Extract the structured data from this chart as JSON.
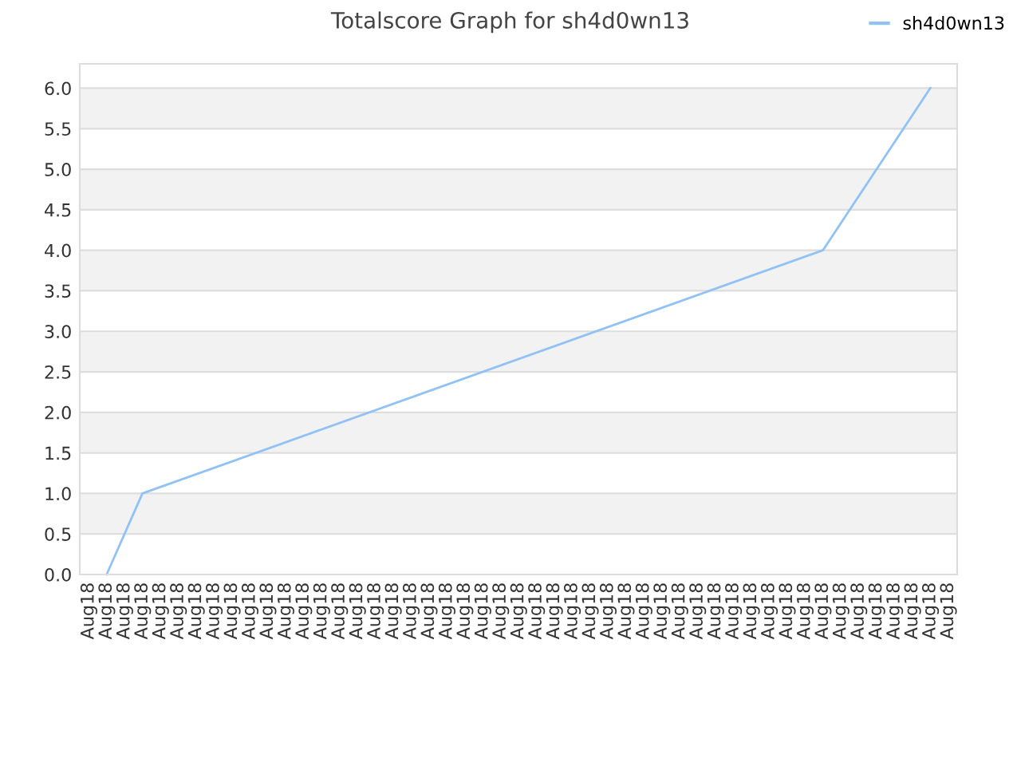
{
  "chart_data": {
    "type": "line",
    "title": "Totalscore Graph for sh4d0wn13",
    "categories": [
      "Aug18",
      "Aug18",
      "Aug18",
      "Aug18",
      "Aug18",
      "Aug18",
      "Aug18",
      "Aug18",
      "Aug18",
      "Aug18",
      "Aug18",
      "Aug18",
      "Aug18",
      "Aug18",
      "Aug18",
      "Aug18",
      "Aug18",
      "Aug18",
      "Aug18",
      "Aug18",
      "Aug18",
      "Aug18",
      "Aug18",
      "Aug18",
      "Aug18",
      "Aug18",
      "Aug18",
      "Aug18",
      "Aug18",
      "Aug18",
      "Aug18",
      "Aug18",
      "Aug18",
      "Aug18",
      "Aug18",
      "Aug18",
      "Aug18",
      "Aug18",
      "Aug18",
      "Aug18",
      "Aug18",
      "Aug18",
      "Aug18",
      "Aug18",
      "Aug18",
      "Aug18",
      "Aug18",
      "Aug18",
      "Aug18"
    ],
    "series": [
      {
        "name": "sh4d0wn13",
        "color": "#90c2f5",
        "values": [
          null,
          0,
          null,
          1.0,
          null,
          null,
          null,
          null,
          null,
          null,
          null,
          null,
          null,
          null,
          null,
          null,
          null,
          null,
          null,
          null,
          null,
          null,
          null,
          null,
          null,
          null,
          null,
          null,
          null,
          null,
          null,
          null,
          null,
          null,
          null,
          null,
          null,
          null,
          null,
          null,
          null,
          4.0,
          null,
          null,
          null,
          null,
          null,
          6.0,
          null
        ]
      }
    ],
    "ylim": [
      0,
      6.3
    ],
    "yticks": [
      {
        "value": 0,
        "label": "0.0"
      },
      0.5,
      {
        "value": 1,
        "label": "1.0"
      },
      1.5,
      {
        "value": 2,
        "label": "2.0"
      },
      2.5,
      {
        "value": 3,
        "label": "3.0"
      },
      3.5,
      {
        "value": 4,
        "label": "4.0"
      },
      4.5,
      {
        "value": 5,
        "label": "5.0"
      },
      5.5,
      {
        "value": 6,
        "label": "6.0"
      }
    ],
    "grid": "y",
    "legend": "top right",
    "marker": "none",
    "line_style": "solid"
  }
}
